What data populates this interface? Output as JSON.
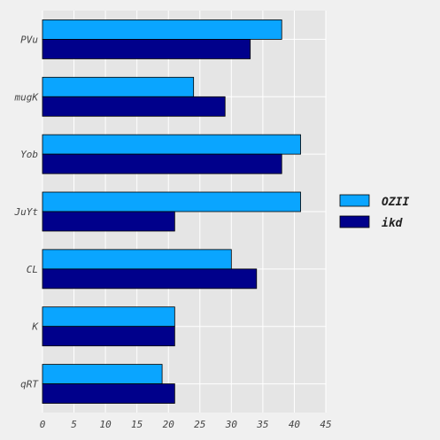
{
  "chart_data": {
    "type": "bar",
    "orientation": "horizontal",
    "categories": [
      "PVu",
      "mugK",
      "Yob",
      "JuYt",
      "CL",
      "K",
      "qRT"
    ],
    "series": [
      {
        "name": "OZII",
        "values": [
          38,
          24,
          41,
          41,
          30,
          21,
          19
        ],
        "color": "#0aa5ff"
      },
      {
        "name": "ikd",
        "values": [
          33,
          29,
          38,
          21,
          34,
          21,
          21
        ],
        "color": "#00008b"
      }
    ],
    "xticks": [
      "0",
      "5",
      "10",
      "15",
      "20",
      "25",
      "30",
      "35",
      "40",
      "45"
    ],
    "xlim": [
      0,
      45
    ],
    "grid": true,
    "legend_position": "right",
    "title": "",
    "xlabel": "",
    "ylabel": ""
  }
}
